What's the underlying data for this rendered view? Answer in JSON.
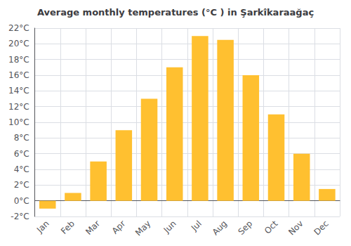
{
  "chart_data": {
    "type": "bar",
    "title": "Average monthly temperatures (°C ) in Şarkîkaraağaç",
    "categories": [
      "Jan",
      "Feb",
      "Mar",
      "Apr",
      "May",
      "Jun",
      "Jul",
      "Aug",
      "Sep",
      "Oct",
      "Nov",
      "Dec"
    ],
    "values": [
      -1.0,
      1.0,
      5.0,
      9.0,
      13.0,
      17.0,
      21.0,
      20.5,
      16.0,
      11.0,
      6.0,
      1.5
    ],
    "color": "#FFC030",
    "ylim": [
      -2,
      22
    ],
    "yticks": [
      {
        "value": -2,
        "label": "-2°C"
      },
      {
        "value": 0,
        "label": "0°C"
      },
      {
        "value": 2,
        "label": "2°C"
      },
      {
        "value": 4,
        "label": "4°C"
      },
      {
        "value": 6,
        "label": "6°C"
      },
      {
        "value": 8,
        "label": "8°C"
      },
      {
        "value": 10,
        "label": "10°C"
      },
      {
        "value": 12,
        "label": "12°C"
      },
      {
        "value": 14,
        "label": "14°C"
      },
      {
        "value": 16,
        "label": "16°C"
      },
      {
        "value": 18,
        "label": "18°C"
      },
      {
        "value": 20,
        "label": "20°C"
      },
      {
        "value": 22,
        "label": "22°C"
      }
    ],
    "grid": true
  }
}
